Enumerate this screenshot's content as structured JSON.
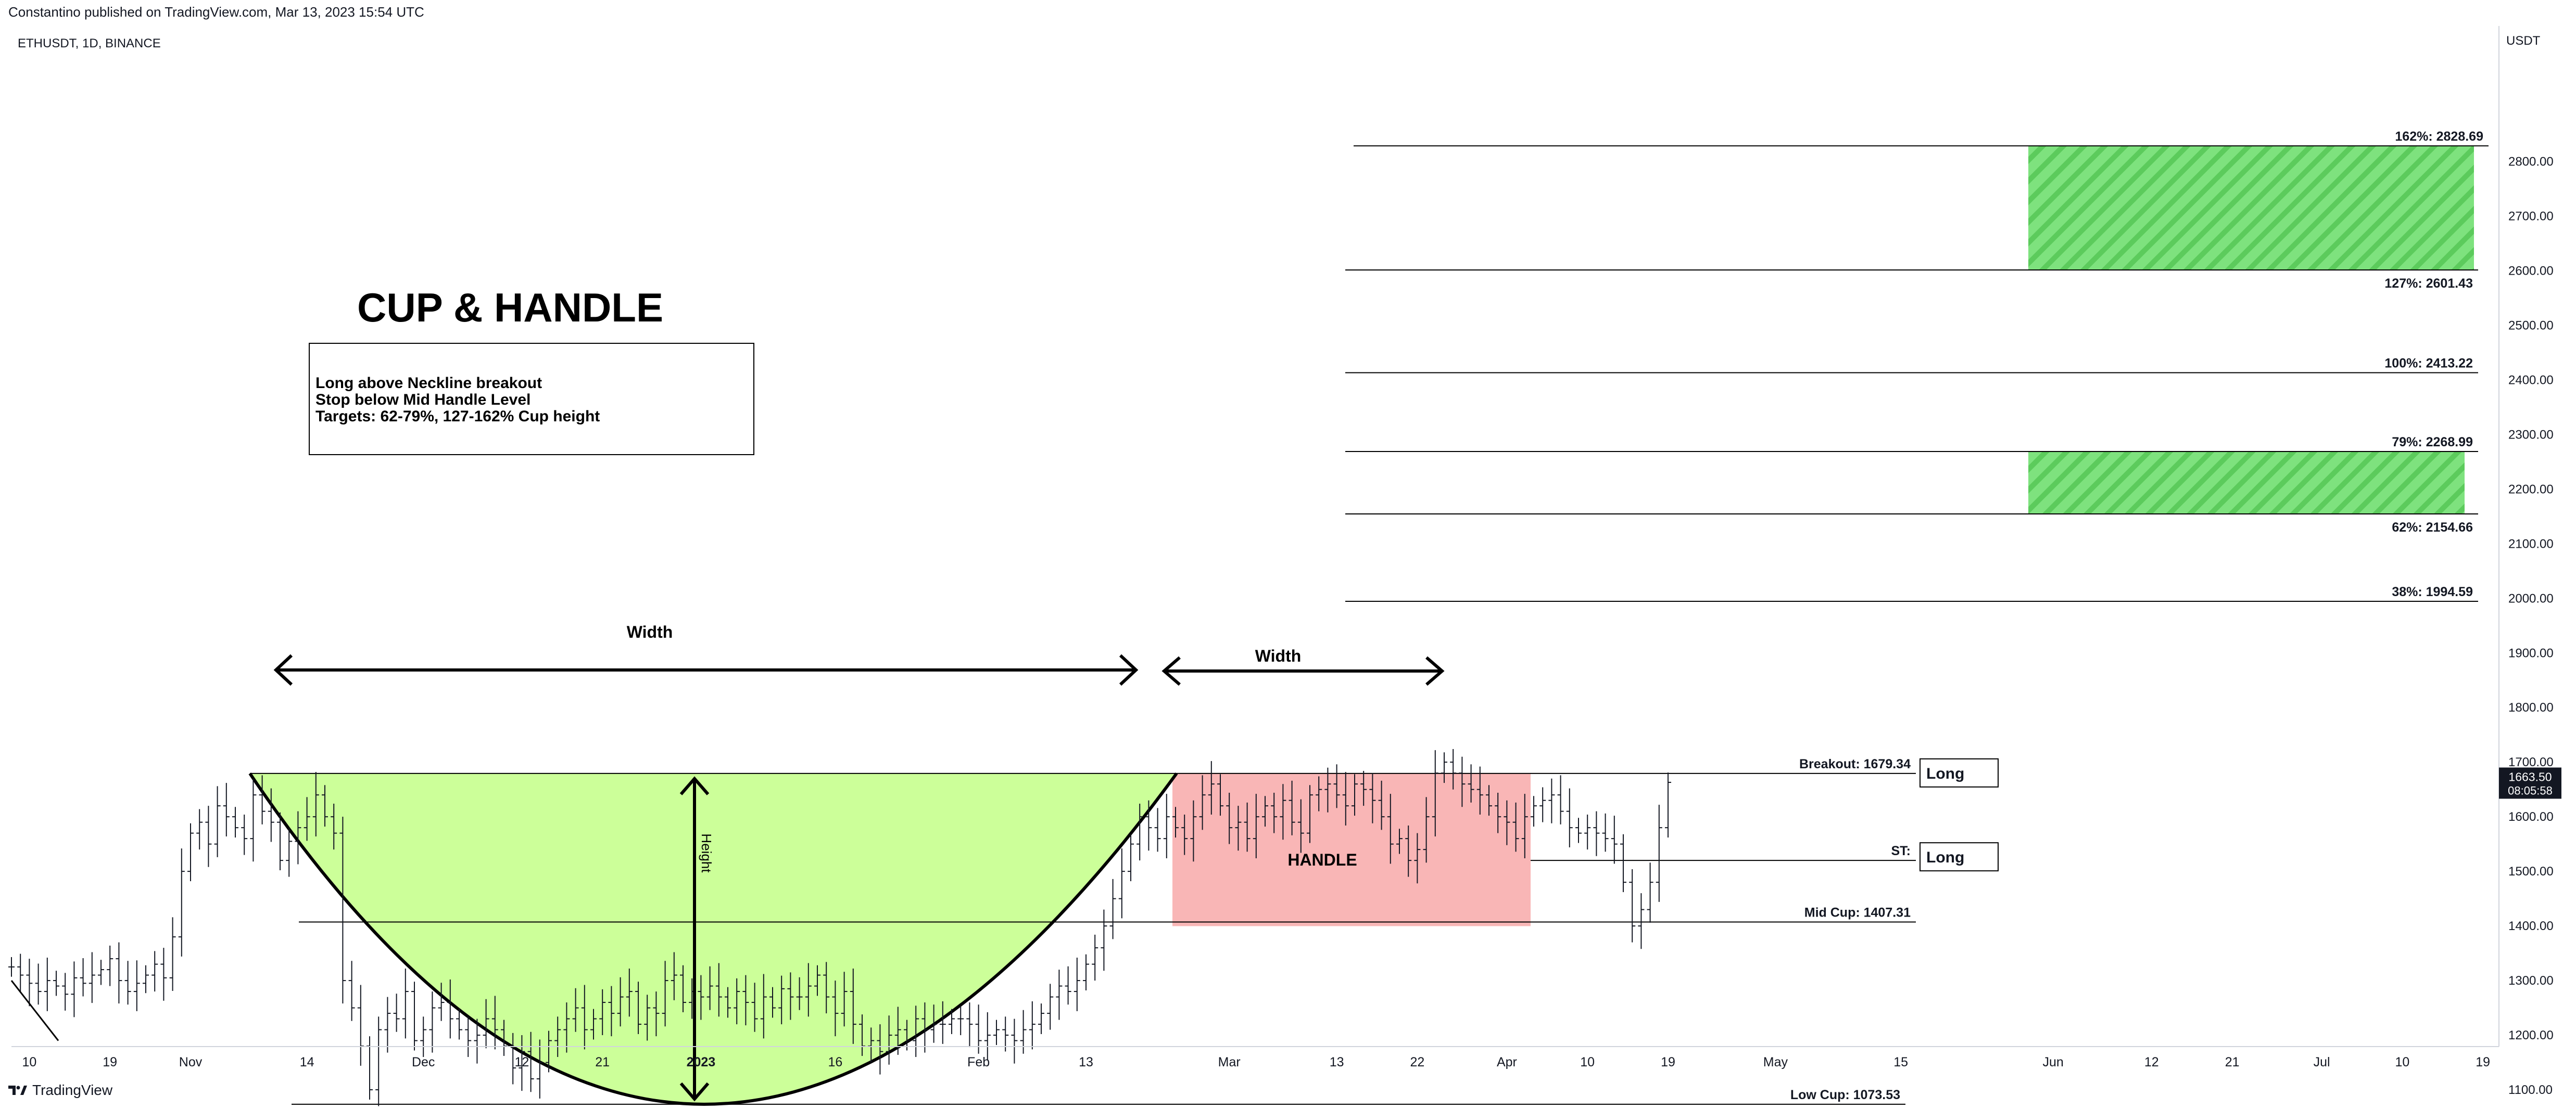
{
  "header": {
    "published": "Constantino published on TradingView.com, Mar 13, 2023 15:54 UTC",
    "symbol": "ETHUSDT, 1D, BINANCE"
  },
  "footer": {
    "brand": "TradingView"
  },
  "chart_data": {
    "type": "candlestick",
    "title": "CUP & HANDLE",
    "y_unit": "USDT",
    "ylim": [
      1020,
      2900
    ],
    "yticks": [
      1100,
      1200,
      1300,
      1400,
      1500,
      1600,
      1700,
      1800,
      1900,
      2000,
      2100,
      2200,
      2300,
      2400,
      2500,
      2600,
      2700,
      2800
    ],
    "xlim": [
      0,
      236
    ],
    "xticks": [
      {
        "label": "10",
        "day": 2
      },
      {
        "label": "19",
        "day": 11
      },
      {
        "label": "Nov",
        "day": 20,
        "bold": false
      },
      {
        "label": "14",
        "day": 33
      },
      {
        "label": "Dec",
        "day": 46
      },
      {
        "label": "12",
        "day": 57
      },
      {
        "label": "21",
        "day": 66
      },
      {
        "label": "2023",
        "day": 77,
        "bold": true
      },
      {
        "label": "16",
        "day": 92
      },
      {
        "label": "Feb",
        "day": 108
      },
      {
        "label": "13",
        "day": 120
      },
      {
        "label": "Mar",
        "day": 136
      },
      {
        "label": "13",
        "day": 148
      },
      {
        "label": "22",
        "day": 157
      },
      {
        "label": "Apr",
        "day": 167
      },
      {
        "label": "10",
        "day": 176
      },
      {
        "label": "19",
        "day": 185
      },
      {
        "label": "May",
        "day": 197
      },
      {
        "label": "15",
        "day": 211
      },
      {
        "label": "Jun",
        "day": 228
      },
      {
        "label": "12",
        "day": 239
      },
      {
        "label": "21",
        "day": 248
      },
      {
        "label": "Jul",
        "day": 258
      },
      {
        "label": "10",
        "day": 267
      },
      {
        "label": "19",
        "day": 276
      }
    ],
    "current_price": {
      "value": "1663.50",
      "countdown": "08:05:58"
    },
    "closes": [
      1325,
      1310,
      1295,
      1280,
      1300,
      1290,
      1275,
      1305,
      1295,
      1310,
      1320,
      1340,
      1300,
      1280,
      1295,
      1310,
      1330,
      1305,
      1380,
      1500,
      1570,
      1590,
      1550,
      1620,
      1600,
      1580,
      1560,
      1640,
      1610,
      1590,
      1520,
      1555,
      1580,
      1600,
      1640,
      1600,
      1570,
      1300,
      1250,
      1180,
      1100,
      1210,
      1240,
      1230,
      1280,
      1190,
      1210,
      1250,
      1260,
      1230,
      1210,
      1190,
      1200,
      1230,
      1210,
      1180,
      1140,
      1170,
      1120,
      1150,
      1190,
      1210,
      1230,
      1250,
      1210,
      1230,
      1260,
      1240,
      1270,
      1280,
      1220,
      1250,
      1240,
      1300,
      1310,
      1260,
      1280,
      1270,
      1290,
      1270,
      1250,
      1280,
      1260,
      1230,
      1270,
      1250,
      1285,
      1270,
      1270,
      1290,
      1310,
      1270,
      1240,
      1280,
      1220,
      1180,
      1190,
      1170,
      1200,
      1210,
      1190,
      1230,
      1210,
      1220,
      1220,
      1230,
      1230,
      1220,
      1190,
      1200,
      1210,
      1200,
      1190,
      1210,
      1220,
      1240,
      1270,
      1290,
      1280,
      1300,
      1330,
      1360,
      1400,
      1450,
      1500,
      1550,
      1600,
      1580,
      1560,
      1600,
      1580,
      1560,
      1600,
      1640,
      1660,
      1620,
      1580,
      1590,
      1560,
      1600,
      1620,
      1600,
      1630,
      1590,
      1570,
      1640,
      1650,
      1660,
      1640,
      1620,
      1660,
      1650,
      1630,
      1600,
      1550,
      1560,
      1520,
      1540,
      1600,
      1680,
      1700,
      1680,
      1660,
      1650,
      1640,
      1620,
      1600,
      1590,
      1560,
      1600,
      1620,
      1630,
      1640,
      1610,
      1580,
      1570,
      1580,
      1570,
      1560,
      1550,
      1480,
      1400,
      1430,
      1480,
      1580,
      1663
    ],
    "annotations": {
      "instructions": [
        "Long above Neckline breakout",
        "Stop below Mid Handle Level",
        "Targets: 62-79%, 127-162% Cup height"
      ],
      "width_label": "Width",
      "handle_width_label": "Width",
      "height_label": "Height",
      "handle_label": "HANDLE"
    },
    "levels": [
      {
        "label": "162%: 2828.69",
        "value": 2828.69
      },
      {
        "label": "127%: 2601.43",
        "value": 2601.43
      },
      {
        "label": "100%: 2413.22",
        "value": 2413.22
      },
      {
        "label": "79%: 2268.99",
        "value": 2268.99
      },
      {
        "label": "62%: 2154.66",
        "value": 2154.66
      },
      {
        "label": "38%: 1994.59",
        "value": 1994.59
      },
      {
        "label": "Breakout: 1679.34",
        "value": 1679.34
      },
      {
        "label": "ST:",
        "value": 1520
      },
      {
        "label": "Mid Cup: 1407.31",
        "value": 1407.31
      },
      {
        "label": "Low Cup: 1073.53",
        "value": 1073.53
      }
    ],
    "trade_tags": [
      {
        "text": "Long",
        "value": 1679.34
      },
      {
        "text": "Long",
        "value": 1520
      }
    ],
    "target_zones": [
      {
        "from": 2601.43,
        "to": 2828.69
      },
      {
        "from": 2154.66,
        "to": 2268.99
      }
    ],
    "handle_zone": {
      "from": 1407.31,
      "to": 1679.34
    },
    "colors": {
      "cup_fill": "#ccff99",
      "handle_fill": "#f9b6b6",
      "target_green": "#7ee27e",
      "target_stripe": "#5ccb5c",
      "price_tag": "#131722"
    }
  }
}
